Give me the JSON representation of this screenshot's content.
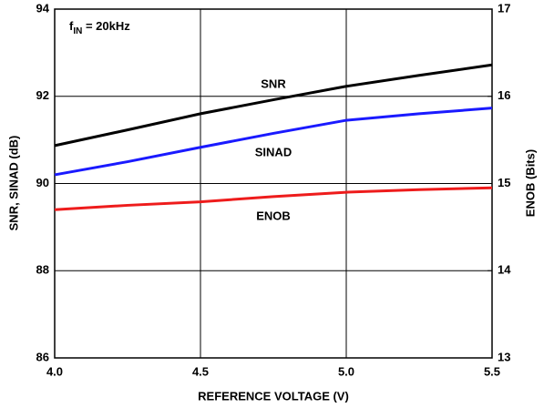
{
  "chart_data": {
    "type": "line",
    "x_label": "REFERENCE VOLTAGE (V)",
    "y_label": "SNR, SINAD (dB)",
    "y2_label": "ENOB (Bits)",
    "annotation": {
      "main": "f",
      "sub": "IN",
      "rest": " = 20kHz"
    },
    "x": [
      4.0,
      4.25,
      4.5,
      4.75,
      5.0,
      5.25,
      5.5
    ],
    "series": [
      {
        "name": "SNR",
        "color": "#000000",
        "values": [
          90.87,
          91.23,
          91.6,
          91.92,
          92.23,
          92.48,
          92.72
        ]
      },
      {
        "name": "SINAD",
        "color": "#1a1aff",
        "values": [
          90.2,
          90.5,
          90.83,
          91.15,
          91.45,
          91.6,
          91.73
        ]
      },
      {
        "name": "ENOB",
        "color": "#ee1c1c",
        "axis": "y2",
        "values": [
          14.7,
          14.75,
          14.79,
          14.85,
          14.9,
          14.93,
          14.95
        ]
      }
    ],
    "xlim": [
      4.0,
      5.5
    ],
    "xticks": [
      {
        "value": 4.0,
        "label": "4.0"
      },
      4.5,
      {
        "value": 5.0,
        "label": "5.0"
      },
      5.5
    ],
    "ylim": [
      86,
      94
    ],
    "yticks": [
      86,
      88,
      90,
      92,
      94
    ],
    "y2lim": [
      13,
      17
    ],
    "y2ticks": [
      13,
      14,
      15,
      16,
      17
    ],
    "grid": true
  }
}
